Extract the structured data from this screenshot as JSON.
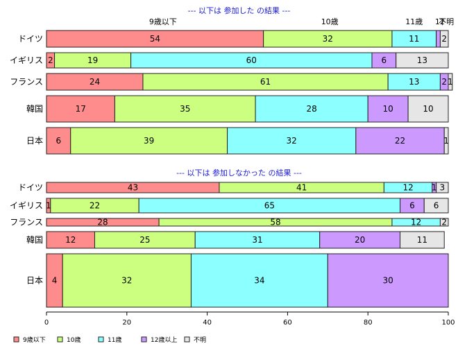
{
  "chart_data": {
    "type": "bar",
    "orientation": "horizontal",
    "stacked": true,
    "xlim": [
      0,
      100
    ],
    "x_ticks": [
      "0",
      "20",
      "40",
      "60",
      "80",
      "100"
    ],
    "legend": [
      "9歳以下",
      "10歳",
      "11歳",
      "12歳以上",
      "不明"
    ],
    "colors": [
      "#ff8c8c",
      "#ccff80",
      "#8cffff",
      "#cc99ff",
      "#e6e6e6"
    ],
    "legend_position": "bottom",
    "panels": [
      {
        "title": "--- 以下は 参加した の結果 ---",
        "column_labels": [
          {
            "text": "9歳以下",
            "at": 29
          },
          {
            "text": "10歳",
            "at": 70.5
          },
          {
            "text": "11歳",
            "at": 91.5
          },
          {
            "text": "12",
            "at": 97.9
          },
          {
            "text": "不明",
            "at": 99.5
          }
        ],
        "categories": [
          "ドイツ",
          "イギリス",
          "フランス",
          "韓国",
          "日本"
        ],
        "values": [
          [
            54,
            32,
            11,
            1,
            2
          ],
          [
            2,
            19,
            60,
            6,
            13
          ],
          [
            24,
            61,
            13,
            2,
            1
          ],
          [
            17,
            35,
            28,
            10,
            10
          ],
          [
            6,
            39,
            32,
            22,
            1
          ]
        ],
        "labels": [
          [
            "54",
            "32",
            "11",
            "",
            "2"
          ],
          [
            "2",
            "19",
            "60",
            "6",
            "13"
          ],
          [
            "24",
            "61",
            "13",
            "2",
            "1"
          ],
          [
            "17",
            "35",
            "28",
            "10",
            "10"
          ],
          [
            "6",
            "39",
            "32",
            "22",
            "1"
          ]
        ]
      },
      {
        "title": "--- 以下は 参加しなかった の結果 ---",
        "column_labels": [],
        "categories": [
          "ドイツ",
          "イギリス",
          "フランス",
          "韓国",
          "日本"
        ],
        "values": [
          [
            43,
            41,
            12,
            1,
            3
          ],
          [
            1,
            22,
            65,
            6,
            6
          ],
          [
            28,
            58,
            12,
            0,
            2
          ],
          [
            12,
            25,
            31,
            20,
            11
          ],
          [
            4,
            32,
            34,
            30,
            0
          ]
        ],
        "labels": [
          [
            "43",
            "41",
            "12",
            "1",
            "3"
          ],
          [
            "1",
            "22",
            "65",
            "6",
            "6"
          ],
          [
            "28",
            "58",
            "12",
            "",
            "2"
          ],
          [
            "12",
            "25",
            "31",
            "20",
            "11"
          ],
          [
            "4",
            "32",
            "34",
            "30",
            ""
          ]
        ]
      }
    ]
  }
}
